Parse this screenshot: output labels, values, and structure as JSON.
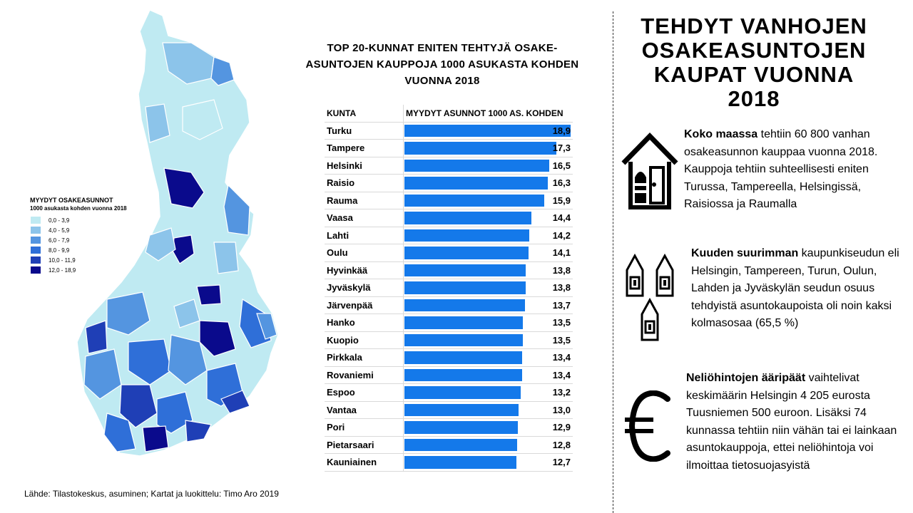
{
  "map": {
    "legend_title": "MYYDYT OSAKEASUNNOT",
    "legend_subtitle": "1000 asukasta kohden vuonna 2018",
    "classes": [
      {
        "label": "0,0 - 3,9",
        "color": "#bfeaf2"
      },
      {
        "label": "4,0 - 5,9",
        "color": "#8cc4ea"
      },
      {
        "label": "6,0 - 7,9",
        "color": "#5495e0"
      },
      {
        "label": "8,0 - 9,9",
        "color": "#2f6fd8"
      },
      {
        "label": "10,0 - 11,9",
        "color": "#1f3fb6"
      },
      {
        "label": "12,0 - 18,9",
        "color": "#0a0a8c"
      }
    ]
  },
  "source": "Lähde: Tilastokeskus, asuminen; Kartat ja luokittelu: Timo Aro 2019",
  "chart_title": [
    "TOP 20-KUNNAT ENITEN TEHTYJÄ OSAKE-",
    "ASUNTOJEN KAUPPOJA 1000 ASUKASTA KOHDEN",
    "VUONNA 2018"
  ],
  "chart_data": {
    "type": "bar",
    "orientation": "horizontal",
    "title": "TOP 20-KUNNAT ENITEN TEHTYJÄ OSAKE-ASUNTOJEN KAUPPOJA 1000 ASUKASTA KOHDEN VUONNA 2018",
    "col_name_header": "KUNTA",
    "col_value_header": "MYYDYT ASUNNOT 1000 AS. KOHDEN",
    "categories": [
      "Turku",
      "Tampere",
      "Helsinki",
      "Raisio",
      "Rauma",
      "Vaasa",
      "Lahti",
      "Oulu",
      "Hyvinkää",
      "Jyväskylä",
      "Järvenpää",
      "Hanko",
      "Kuopio",
      "Pirkkala",
      "Rovaniemi",
      "Espoo",
      "Vantaa",
      "Pori",
      "Pietarsaari",
      "Kauniainen"
    ],
    "values": [
      18.9,
      17.3,
      16.5,
      16.3,
      15.9,
      14.4,
      14.2,
      14.1,
      13.8,
      13.8,
      13.7,
      13.5,
      13.5,
      13.4,
      13.4,
      13.2,
      13.0,
      12.9,
      12.8,
      12.7
    ],
    "value_labels": [
      "18,9",
      "17,3",
      "16,5",
      "16,3",
      "15,9",
      "14,4",
      "14,2",
      "14,1",
      "13,8",
      "13,8",
      "13,7",
      "13,5",
      "13,5",
      "13,4",
      "13,4",
      "13,2",
      "13,0",
      "12,9",
      "12,8",
      "12,7"
    ],
    "xlim": [
      0,
      18.9
    ],
    "bar_color": "#1479ea"
  },
  "right": {
    "title": [
      "TEHDYT VANHOJEN",
      "OSAKEASUNTOJEN",
      "KAUPAT VUONNA",
      "2018"
    ],
    "p1_bold": "Koko maassa",
    "p1_text": " tehtiin 60 800 vanhan osakeasunnon kauppaa vuonna 2018. Kauppoja tehtiin suhteellisesti eniten Turussa, Tampereella, Helsingissä, Raisiossa ja Raumalla",
    "p2_bold": "Kuuden suurimman",
    "p2_text": " kaupunkiseudun eli Helsingin, Tampereen, Turun, Oulun, Lahden ja Jyväskylän seudun osuus tehdyistä asuntokaupoista oli noin kaksi kolmasosaa (65,5 %)",
    "p3_bold": "Neliöhintojen ääripäät",
    "p3_text": " vaihtelivat keskimäärin Helsingin 4 205 eurosta Tuusniemen 500 euroon. Lisäksi 74 kunnassa tehtiin niin vähän tai ei lainkaan asuntokauppoja, ettei neliöhintoja voi ilmoittaa tietosuojasyistä",
    "icons": [
      "house-icon",
      "houses-icon",
      "euro-icon"
    ]
  }
}
